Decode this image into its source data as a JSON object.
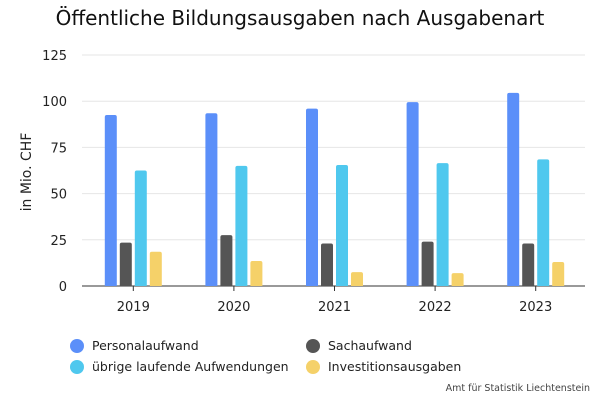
{
  "chart_data": {
    "type": "bar",
    "title": "Öffentliche Bildungsausgaben nach Ausgabenart",
    "ylabel": "in Mio. CHF",
    "xlabel": "",
    "ylim": [
      0,
      125
    ],
    "yticks": [
      0,
      25,
      50,
      75,
      100,
      125
    ],
    "grid": true,
    "legend_position": "bottom",
    "categories": [
      "2019",
      "2020",
      "2021",
      "2022",
      "2023"
    ],
    "series": [
      {
        "name": "Personalaufwand",
        "color": "#5b8ff9",
        "values": [
          92.5,
          93.5,
          96,
          99.5,
          104.5
        ]
      },
      {
        "name": "Sachaufwand",
        "color": "#555555",
        "values": [
          23.5,
          27.5,
          23,
          24,
          23
        ]
      },
      {
        "name": "übrige laufende Aufwendungen",
        "color": "#4fc8ee",
        "values": [
          62.5,
          65,
          65.5,
          66.5,
          68.5
        ]
      },
      {
        "name": "Investitionsausgaben",
        "color": "#f5d169",
        "values": [
          18.5,
          13.5,
          7.5,
          7,
          13
        ]
      }
    ]
  },
  "legend_order": [
    0,
    1,
    2,
    3
  ],
  "source": "Amt für Statistik Liechtenstein"
}
